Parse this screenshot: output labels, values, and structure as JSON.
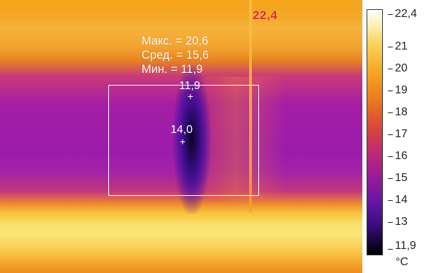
{
  "image": {
    "stats": {
      "max": "Макс. = 20,6",
      "avg": "Сред. = 15,6",
      "min": "Мин. = 11,9"
    },
    "spot_min_label": "11,9",
    "spot_center_label": "14,0",
    "hot_marker_label": "22,4"
  },
  "scale": {
    "ticks": [
      "22,4",
      "21",
      "20",
      "19",
      "18",
      "17",
      "16",
      "15",
      "14",
      "13",
      "11,9"
    ],
    "unit": "°C",
    "colors": {
      "top": "#ffffff",
      "mid": "#d9483a",
      "bottom": "#000000"
    }
  }
}
